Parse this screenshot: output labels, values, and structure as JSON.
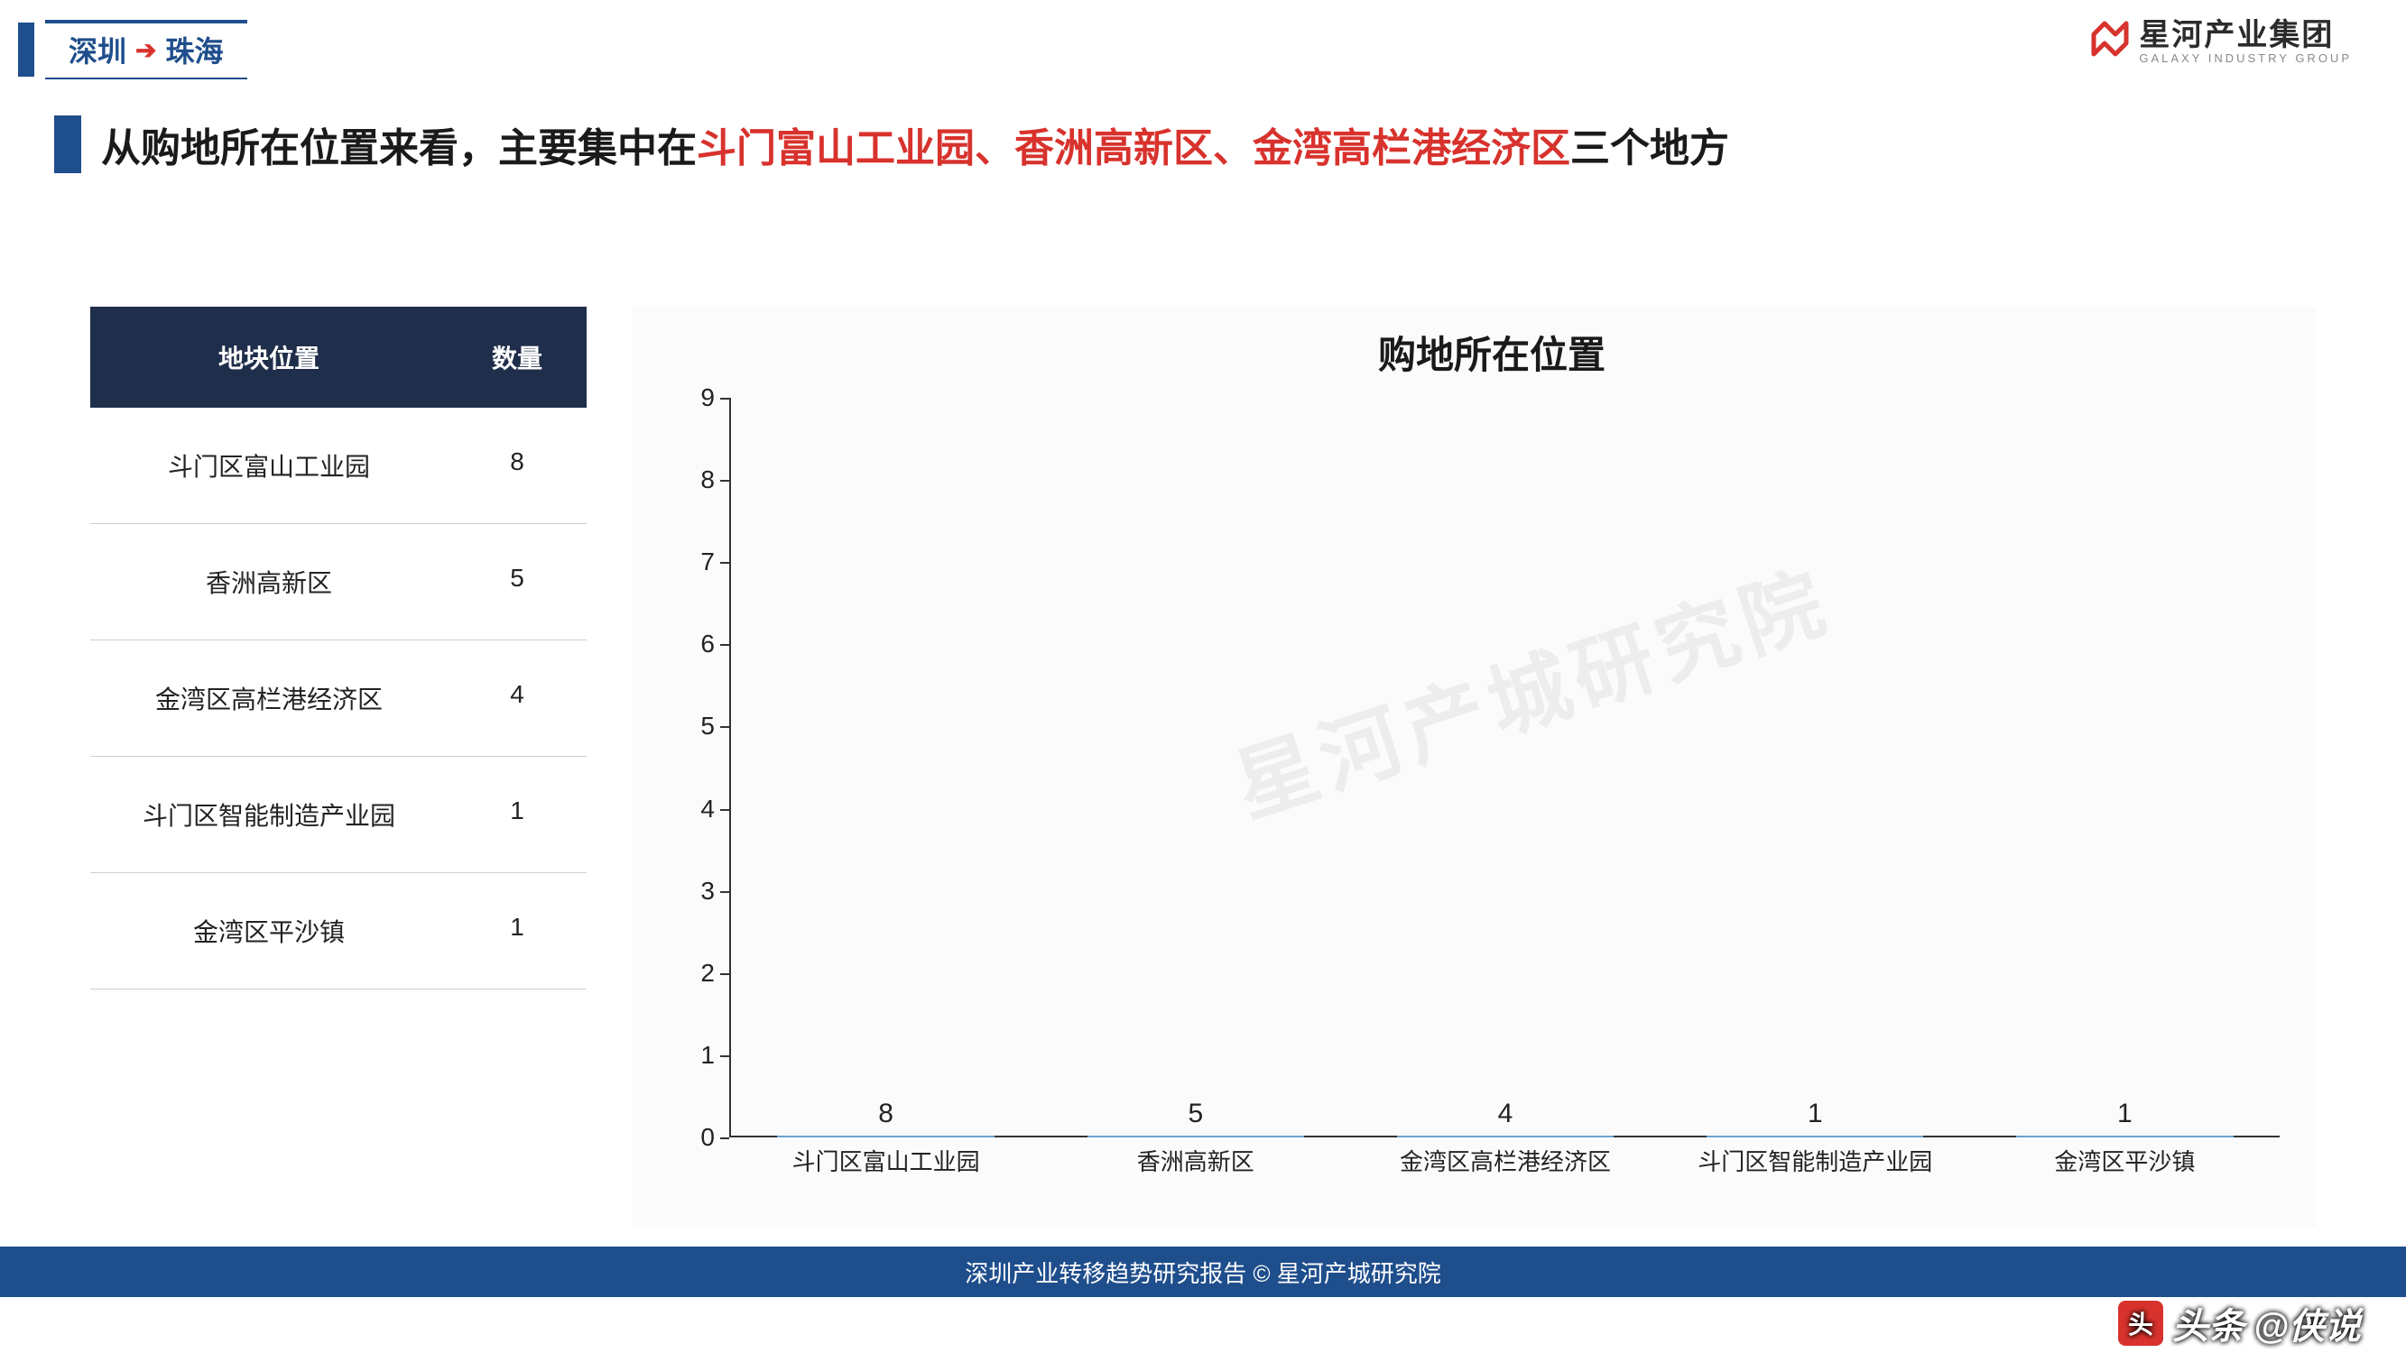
{
  "breadcrumb": {
    "from": "深圳",
    "to": "珠海"
  },
  "logo": {
    "cn": "星河产业集团",
    "en": "GALAXY INDUSTRY GROUP"
  },
  "title": {
    "pre": "从购地所在位置来看，主要集中在",
    "hl": "斗门富山工业园、香洲高新区、金湾高栏港经济区",
    "post": "三个地方"
  },
  "table": {
    "header_loc": "地块位置",
    "header_qty": "数量",
    "rows": [
      {
        "loc": "斗门区富山工业园",
        "qty": 8
      },
      {
        "loc": "香洲高新区",
        "qty": 5
      },
      {
        "loc": "金湾区高栏港经济区",
        "qty": 4
      },
      {
        "loc": "斗门区智能制造产业园",
        "qty": 1
      },
      {
        "loc": "金湾区平沙镇",
        "qty": 1
      }
    ]
  },
  "chart": {
    "type": "bar",
    "title": "购地所在位置",
    "categories": [
      "斗门区富山工业园",
      "香洲高新区",
      "金湾区高栏港经济区",
      "斗门区智能制造产业园",
      "金湾区平沙镇"
    ],
    "values": [
      8,
      5,
      4,
      1,
      1
    ],
    "ylim": [
      0,
      9
    ],
    "ytick_step": 1,
    "bar_fill_light": "#a8cce8",
    "bar_fill_dark": "#7fb2d9",
    "bar_border": "#6aa3cf",
    "background_color": "#fbfbfb",
    "axis_color": "#333333",
    "title_fontsize": 42,
    "label_fontsize": 28,
    "value_fontsize": 30,
    "category_fontsize": 26,
    "bar_width": 0.7
  },
  "watermark": "星河产城研究院",
  "footer": "深圳产业转移趋势研究报告 © 星河产城研究院",
  "credit": {
    "prefix": "头条",
    "handle": "@侠说"
  },
  "colors": {
    "brand_blue": "#1f4e8c",
    "brand_red": "#d8322d",
    "dark_navy": "#1f2e4a",
    "text": "#1a1a1a"
  }
}
